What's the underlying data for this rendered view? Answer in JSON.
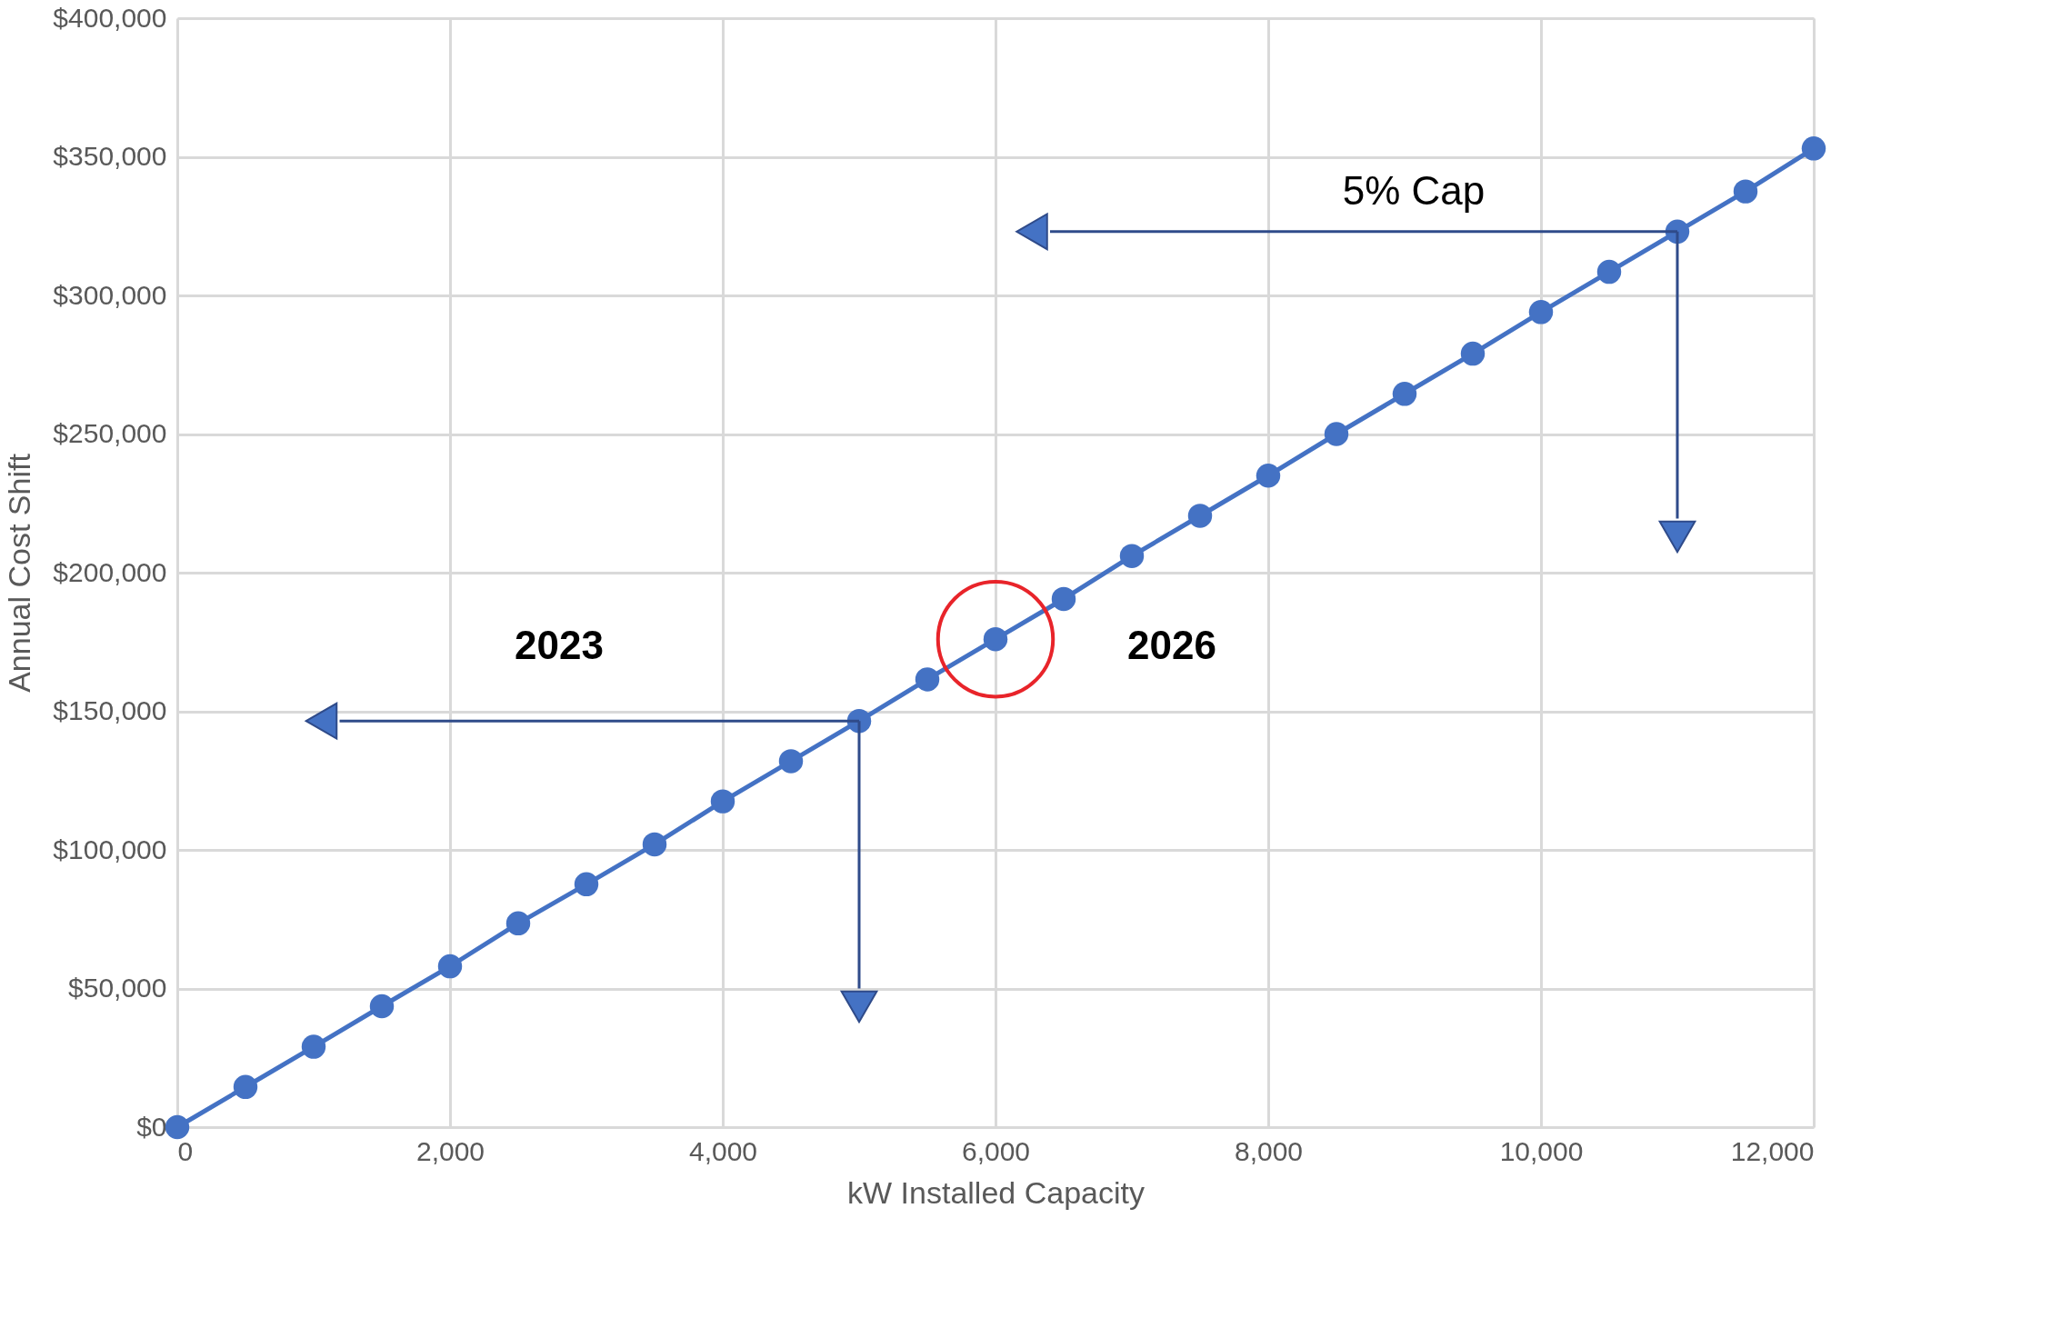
{
  "chart_data": {
    "type": "line",
    "xlabel": "kW Installed Capacity",
    "ylabel": "Annual Cost Shift",
    "x": [
      0,
      500,
      1000,
      1500,
      2000,
      2500,
      3000,
      3500,
      4000,
      4500,
      5000,
      5500,
      6000,
      6500,
      7000,
      7500,
      8000,
      8500,
      9000,
      9500,
      10000,
      10500,
      11000,
      11500,
      12000
    ],
    "series": [
      {
        "color": "#4472c4",
        "values": [
          0,
          14500,
          29000,
          43600,
          58000,
          73500,
          87600,
          102000,
          117500,
          132000,
          146500,
          161500,
          176000,
          190500,
          206000,
          220500,
          235000,
          250000,
          264500,
          279000,
          294000,
          308500,
          323000,
          337500,
          353000
        ]
      },
      {
        "color": "#2f4b8a",
        "marker": "none",
        "x": [
          11000,
          6400
        ],
        "values": [
          323000,
          323000
        ]
      },
      {
        "color": "#2f4b8a",
        "marker": "none",
        "x": [
          11000,
          11000
        ],
        "values": [
          323000,
          219500
        ]
      },
      {
        "color": "#2f4b8a",
        "marker": "none",
        "x": [
          5000,
          1190
        ],
        "values": [
          146500,
          146500
        ]
      },
      {
        "color": "#2f4b8a",
        "marker": "none",
        "x": [
          5000,
          5000
        ],
        "values": [
          146500,
          50000
        ]
      },
      {
        "type": "scatter",
        "color": "#e8242a",
        "marker": "circle",
        "x": [
          6000
        ],
        "values": [
          176000
        ]
      }
    ],
    "marker": "circle",
    "line_style": "solid",
    "grid": true,
    "xlim": [
      0,
      12000
    ],
    "ylim": [
      0,
      400000
    ],
    "xticks": [
      0,
      {
        "value": 2000,
        "label": "2,000"
      },
      {
        "value": 4000,
        "label": "4,000"
      },
      {
        "value": 6000,
        "label": "6,000"
      },
      {
        "value": 8000,
        "label": "8,000"
      },
      {
        "value": 10000,
        "label": "10,000"
      },
      {
        "value": 12000,
        "label": "12,000"
      }
    ],
    "yticks": [
      {
        "value": 0,
        "label": "$0"
      },
      {
        "value": 50000,
        "label": "$50,000"
      },
      {
        "value": 100000,
        "label": "$100,000"
      },
      {
        "value": 150000,
        "label": "$150,000"
      },
      {
        "value": 200000,
        "label": "$200,000"
      },
      {
        "value": 250000,
        "label": "$250,000"
      },
      {
        "value": 300000,
        "label": "$300,000"
      },
      {
        "value": 350000,
        "label": "$350,000"
      },
      {
        "value": 400000,
        "label": "$400,000"
      }
    ],
    "annotations": [
      "5% Cap",
      "2023",
      "2026"
    ]
  }
}
